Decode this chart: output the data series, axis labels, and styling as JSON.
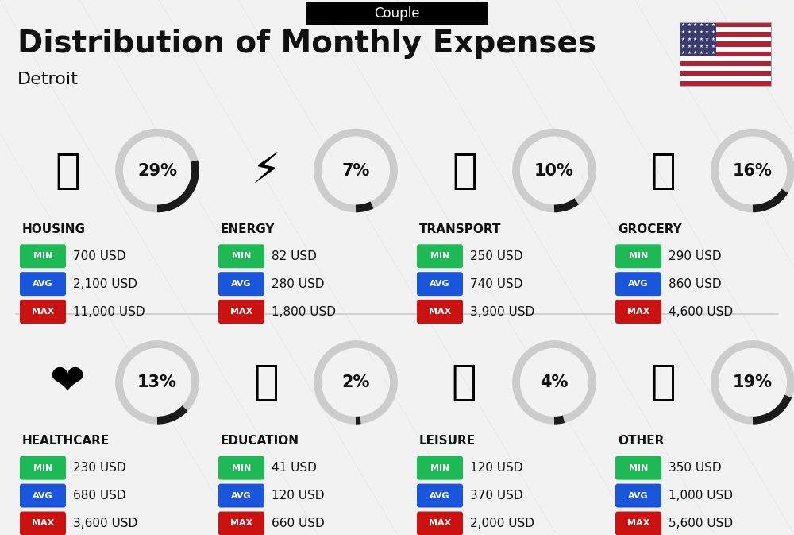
{
  "title": "Distribution of Monthly Expenses",
  "subtitle": "Detroit",
  "header_label": "Couple",
  "bg_color": "#f2f2f2",
  "categories": [
    {
      "name": "HOUSING",
      "percent": 29,
      "icon": "🏢",
      "min": "700 USD",
      "avg": "2,100 USD",
      "max": "11,000 USD",
      "row": 0,
      "col": 0
    },
    {
      "name": "ENERGY",
      "percent": 7,
      "icon": "⚡",
      "min": "82 USD",
      "avg": "280 USD",
      "max": "1,800 USD",
      "row": 0,
      "col": 1
    },
    {
      "name": "TRANSPORT",
      "percent": 10,
      "icon": "🚌",
      "min": "250 USD",
      "avg": "740 USD",
      "max": "3,900 USD",
      "row": 0,
      "col": 2
    },
    {
      "name": "GROCERY",
      "percent": 16,
      "icon": "🛒",
      "min": "290 USD",
      "avg": "860 USD",
      "max": "4,600 USD",
      "row": 0,
      "col": 3
    },
    {
      "name": "HEALTHCARE",
      "percent": 13,
      "icon": "❤️",
      "min": "230 USD",
      "avg": "680 USD",
      "max": "3,600 USD",
      "row": 1,
      "col": 0
    },
    {
      "name": "EDUCATION",
      "percent": 2,
      "icon": "🎓",
      "min": "41 USD",
      "avg": "120 USD",
      "max": "660 USD",
      "row": 1,
      "col": 1
    },
    {
      "name": "LEISURE",
      "percent": 4,
      "icon": "🛍️",
      "min": "120 USD",
      "avg": "370 USD",
      "max": "2,000 USD",
      "row": 1,
      "col": 2
    },
    {
      "name": "OTHER",
      "percent": 19,
      "icon": "💰",
      "min": "350 USD",
      "avg": "1,000 USD",
      "max": "5,600 USD",
      "row": 1,
      "col": 3
    }
  ],
  "min_color": "#1db954",
  "avg_color": "#1a56db",
  "max_color": "#cc1111",
  "circle_dark": "#1a1a1a",
  "circle_light": "#cccccc",
  "text_color": "#111111"
}
